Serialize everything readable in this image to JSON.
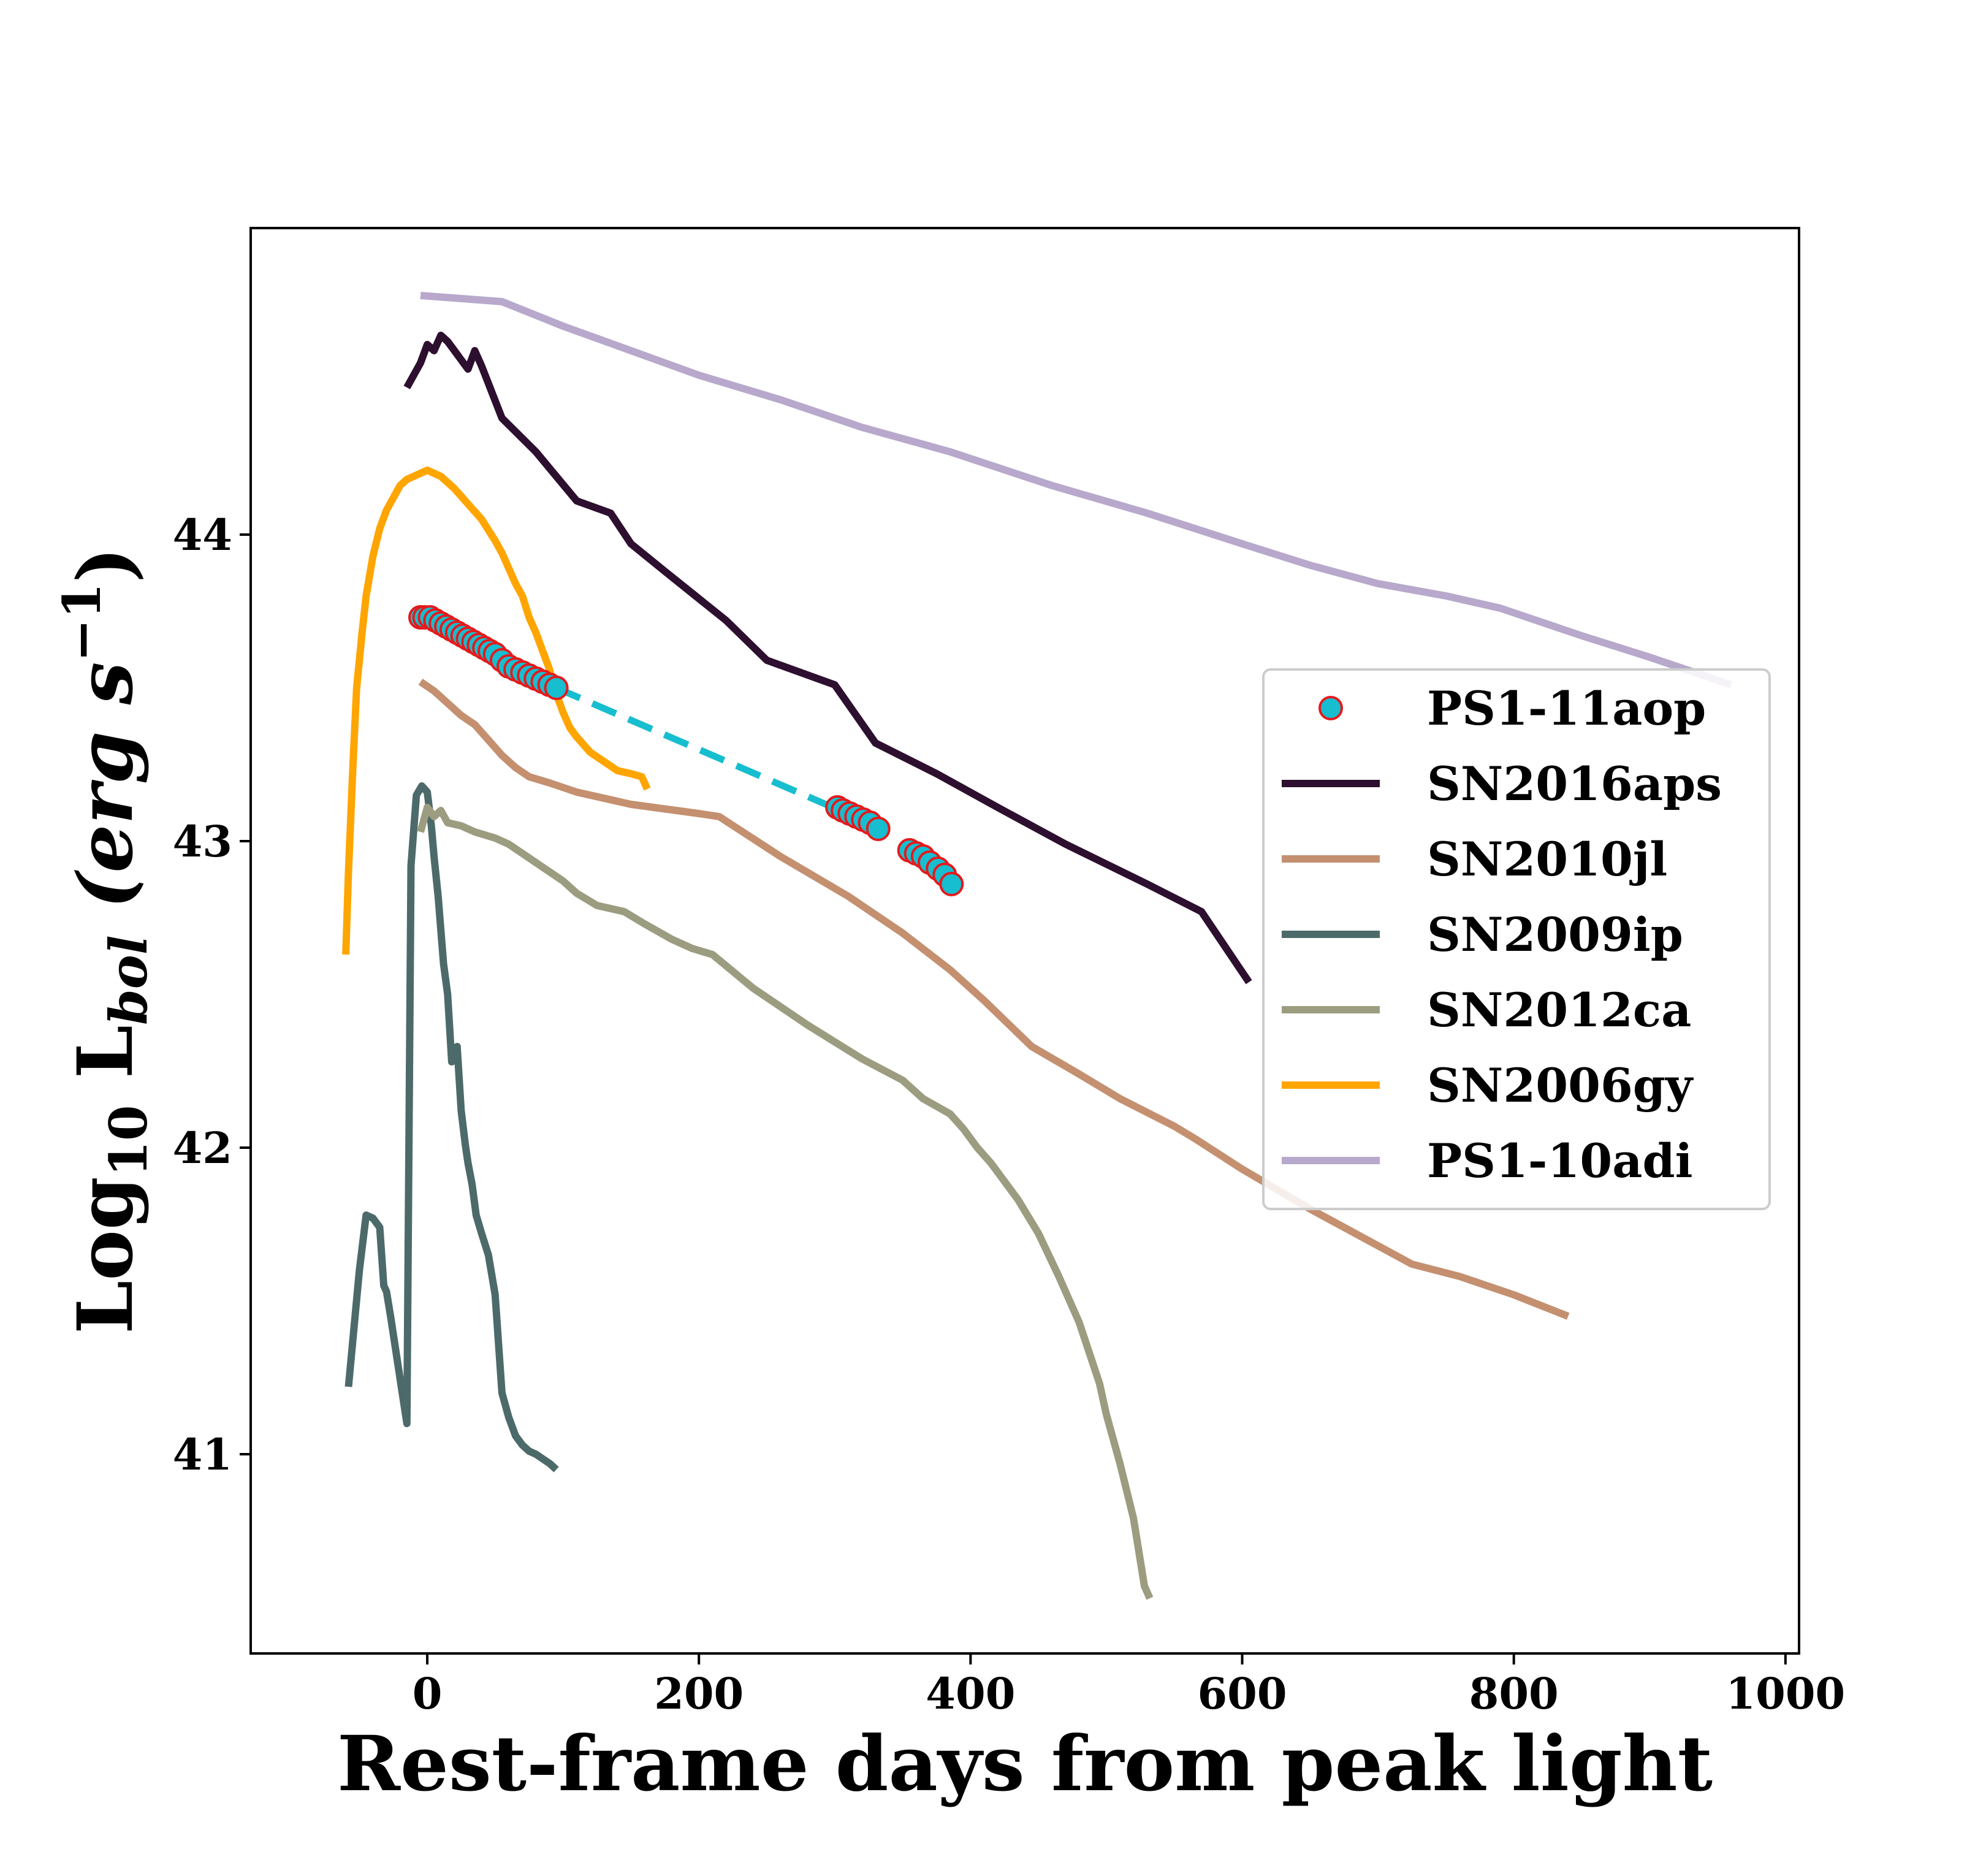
{
  "chart_data": {
    "type": "line",
    "xlabel": "Rest-frame days from peak light",
    "ylabel": "Log10 Lbol (erg s−1)",
    "ylabel_parts": {
      "base": "Log",
      "base_sub": "10",
      "main": " L",
      "main_sub": "bol",
      "paren_open": " (erg s",
      "exp": "−1",
      "paren_close": ")"
    },
    "xlim": [
      -130,
      1010
    ],
    "ylim": [
      40.35,
      45.0
    ],
    "xticks": [
      0,
      200,
      400,
      600,
      800,
      1000
    ],
    "xtick_labels": [
      "0",
      "200",
      "400",
      "600",
      "800",
      "1000"
    ],
    "yticks": [
      41,
      42,
      43,
      44
    ],
    "ytick_labels": [
      "41",
      "42",
      "43",
      "44"
    ],
    "grid": false,
    "legend_position": "center-right",
    "series": [
      {
        "name": "PS1-11aop",
        "kind": "scatter",
        "color": "#17becf",
        "edge_color": "#e41a1c",
        "x": [
          -5,
          -2,
          2,
          6,
          10,
          14,
          18,
          22,
          26,
          30,
          34,
          38,
          42,
          46,
          50,
          55,
          60,
          65,
          70,
          75,
          80,
          85,
          90,
          95,
          302,
          306,
          311,
          316,
          321,
          326,
          332,
          355,
          360,
          365,
          370,
          376,
          381,
          386
        ],
        "y": [
          43.73,
          43.73,
          43.73,
          43.72,
          43.71,
          43.7,
          43.69,
          43.68,
          43.67,
          43.66,
          43.65,
          43.64,
          43.63,
          43.62,
          43.61,
          43.59,
          43.57,
          43.56,
          43.55,
          43.54,
          43.53,
          43.52,
          43.51,
          43.5,
          43.11,
          43.1,
          43.09,
          43.08,
          43.07,
          43.06,
          43.04,
          42.97,
          42.96,
          42.95,
          42.93,
          42.91,
          42.89,
          42.86
        ]
      },
      {
        "name": "",
        "kind": "dashed",
        "color": "#17becf",
        "x": [
          95,
          330
        ],
        "y": [
          43.5,
          43.05
        ]
      },
      {
        "name": "SN2016aps",
        "kind": "line",
        "color": "#2d0f2f",
        "x": [
          -15,
          -5,
          0,
          5,
          10,
          15,
          20,
          25,
          30,
          35,
          40,
          55,
          80,
          110,
          135,
          150,
          175,
          220,
          250,
          300,
          330,
          375,
          420,
          470,
          530,
          570,
          605
        ],
        "y": [
          44.48,
          44.56,
          44.62,
          44.6,
          44.65,
          44.63,
          44.6,
          44.57,
          44.54,
          44.6,
          44.55,
          44.38,
          44.27,
          44.11,
          44.07,
          43.97,
          43.88,
          43.72,
          43.59,
          43.51,
          43.32,
          43.22,
          43.11,
          42.99,
          42.86,
          42.77,
          42.54
        ]
      },
      {
        "name": "SN2010jl",
        "kind": "line",
        "color": "#c49070",
        "x": [
          -5,
          5,
          15,
          25,
          35,
          45,
          55,
          65,
          75,
          90,
          110,
          150,
          200,
          215,
          260,
          310,
          350,
          385,
          410,
          445,
          480,
          510,
          550,
          565,
          600,
          650,
          700,
          725,
          760,
          800,
          840
        ],
        "y": [
          43.52,
          43.49,
          43.45,
          43.41,
          43.38,
          43.33,
          43.28,
          43.24,
          43.21,
          43.19,
          43.16,
          43.12,
          43.09,
          43.08,
          42.95,
          42.82,
          42.7,
          42.58,
          42.48,
          42.33,
          42.24,
          42.16,
          42.07,
          42.03,
          41.93,
          41.8,
          41.68,
          41.62,
          41.58,
          41.52,
          41.45
        ]
      },
      {
        "name": "SN2009ip",
        "kind": "line",
        "color": "#4d6a6a",
        "x": [
          -58,
          -50,
          -45,
          -40,
          -35,
          -32,
          -30,
          -27,
          -15,
          -12,
          -8,
          -4,
          0,
          3,
          5,
          8,
          12,
          15,
          18,
          22,
          25,
          28,
          30,
          33,
          36,
          40,
          45,
          50,
          55,
          60,
          65,
          70,
          75,
          80,
          90,
          95
        ],
        "y": [
          41.22,
          41.6,
          41.78,
          41.77,
          41.74,
          41.55,
          41.53,
          41.45,
          41.1,
          42.92,
          43.15,
          43.18,
          43.16,
          43.05,
          42.95,
          42.82,
          42.6,
          42.5,
          42.28,
          42.33,
          42.12,
          42.01,
          41.95,
          41.88,
          41.78,
          41.72,
          41.65,
          41.52,
          41.2,
          41.12,
          41.06,
          41.03,
          41.01,
          41.0,
          40.97,
          40.95
        ]
      },
      {
        "name": "SN2012ca",
        "kind": "line",
        "color": "#9c9c80",
        "x": [
          -5,
          0,
          5,
          10,
          15,
          25,
          35,
          50,
          60,
          70,
          80,
          90,
          100,
          110,
          125,
          145,
          160,
          180,
          195,
          210,
          240,
          280,
          320,
          350,
          365,
          385,
          395,
          405,
          415,
          435,
          450,
          465,
          480,
          495,
          500,
          510,
          520,
          528,
          532
        ],
        "y": [
          43.03,
          43.11,
          43.08,
          43.1,
          43.06,
          43.05,
          43.03,
          43.01,
          42.99,
          42.96,
          42.93,
          42.9,
          42.87,
          42.83,
          42.79,
          42.77,
          42.73,
          42.68,
          42.65,
          42.63,
          42.52,
          42.4,
          42.29,
          42.22,
          42.16,
          42.11,
          42.06,
          42.0,
          41.95,
          41.83,
          41.72,
          41.58,
          41.43,
          41.23,
          41.13,
          40.97,
          40.79,
          40.57,
          40.53
        ]
      },
      {
        "name": "SN2006gy",
        "kind": "line",
        "color": "#ffa500",
        "x": [
          -60,
          -58,
          -55,
          -52,
          -48,
          -45,
          -40,
          -35,
          -30,
          -25,
          -20,
          -15,
          -10,
          -5,
          0,
          5,
          10,
          15,
          20,
          30,
          40,
          50,
          55,
          60,
          65,
          70,
          75,
          80,
          85,
          90,
          95,
          100,
          105,
          110,
          120,
          130,
          140,
          150,
          158,
          162
        ],
        "y": [
          42.63,
          42.9,
          43.22,
          43.5,
          43.68,
          43.8,
          43.93,
          44.02,
          44.08,
          44.12,
          44.16,
          44.18,
          44.19,
          44.2,
          44.21,
          44.2,
          44.19,
          44.17,
          44.15,
          44.1,
          44.05,
          43.98,
          43.94,
          43.89,
          43.84,
          43.8,
          43.73,
          43.68,
          43.62,
          43.56,
          43.48,
          43.42,
          43.37,
          43.34,
          43.29,
          43.26,
          43.23,
          43.22,
          43.21,
          43.17
        ]
      },
      {
        "name": "PS1-10adi",
        "kind": "line",
        "color": "#b8a8cc",
        "x": [
          -5,
          55,
          100,
          150,
          200,
          260,
          320,
          385,
          460,
          530,
          600,
          650,
          700,
          750,
          790,
          850,
          900,
          960
        ],
        "y": [
          44.78,
          44.76,
          44.68,
          44.6,
          44.52,
          44.44,
          44.35,
          44.27,
          44.16,
          44.07,
          43.97,
          43.9,
          43.84,
          43.8,
          43.76,
          43.67,
          43.6,
          43.51
        ]
      }
    ]
  }
}
